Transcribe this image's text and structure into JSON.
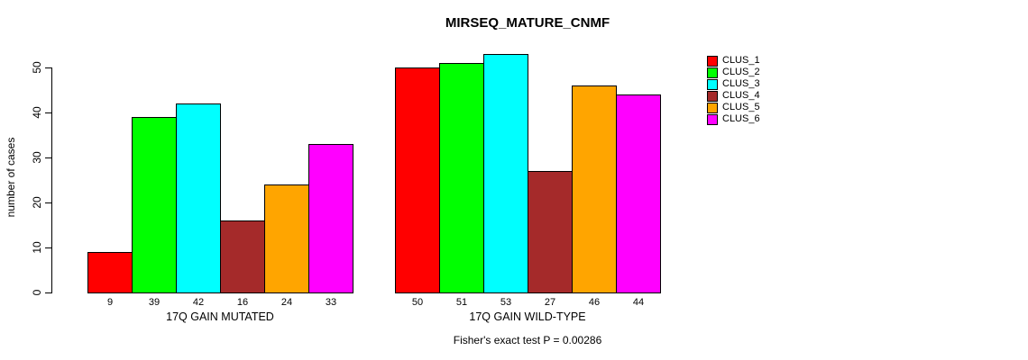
{
  "chart_data": {
    "type": "bar",
    "title": "MIRSEQ_MATURE_CNMF",
    "ylabel": "number of cases",
    "xlabel": "",
    "ylim": [
      0,
      50
    ],
    "yticks": [
      0,
      10,
      20,
      30,
      40,
      50
    ],
    "grid": false,
    "legend_position": "right",
    "bar_value_labels_shown": true,
    "categories": [
      "17Q GAIN MUTATED",
      "17Q GAIN WILD-TYPE"
    ],
    "series": [
      {
        "name": "CLUS_1",
        "color": "#FF0000",
        "values": [
          9,
          50
        ]
      },
      {
        "name": "CLUS_2",
        "color": "#00FF00",
        "values": [
          39,
          51
        ]
      },
      {
        "name": "CLUS_3",
        "color": "#00FFFF",
        "values": [
          42,
          53
        ]
      },
      {
        "name": "CLUS_4",
        "color": "#A52A2A",
        "values": [
          16,
          27
        ]
      },
      {
        "name": "CLUS_5",
        "color": "#FFA500",
        "values": [
          24,
          46
        ]
      },
      {
        "name": "CLUS_6",
        "color": "#FF00FF",
        "values": [
          33,
          44
        ]
      }
    ],
    "caption": "Fisher's exact test P = 0.00286"
  }
}
